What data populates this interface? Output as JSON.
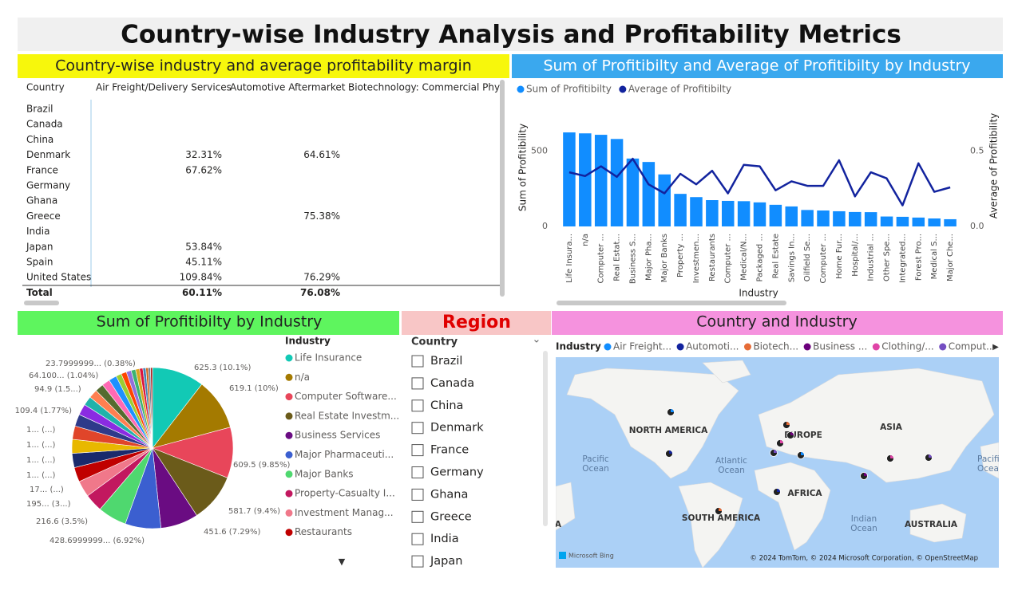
{
  "title": "Country-wise Industry Analysis and Profitability Metrics",
  "table": {
    "title": "Country-wise industry and average profitability margin",
    "columns": [
      "Country",
      "Air Freight/Delivery Services",
      "Automotive Aftermarket",
      "Biotechnology: Commercial Physi"
    ],
    "rows": [
      [
        "Brazil",
        null,
        null,
        null
      ],
      [
        "Canada",
        null,
        null,
        null
      ],
      [
        "China",
        null,
        null,
        null
      ],
      [
        "Denmark",
        "32.31%",
        "64.61%",
        null
      ],
      [
        "France",
        "67.62%",
        null,
        null
      ],
      [
        "Germany",
        null,
        null,
        null
      ],
      [
        "Ghana",
        null,
        null,
        null
      ],
      [
        "Greece",
        null,
        "75.38%",
        null
      ],
      [
        "India",
        null,
        null,
        null
      ],
      [
        "Japan",
        "53.84%",
        null,
        null
      ],
      [
        "Spain",
        "45.11%",
        null,
        null
      ],
      [
        "United States",
        "109.84%",
        "76.29%",
        null
      ],
      [
        "Total",
        "60.11%",
        "76.08%",
        null
      ]
    ]
  },
  "chart_data": [
    {
      "type": "combo",
      "title": "Sum of Profitibilty and Average of Profitibilty by Industry",
      "x_label": "Industry",
      "y_label": "Sum of Profitibility",
      "y2_label": "Average of Profitibility",
      "categories": [
        "Life Insura...",
        "n/a",
        "Computer ...",
        "Real Estat...",
        "Business S...",
        "Major Pha...",
        "Major Banks",
        "Property ...",
        "Investmen...",
        "Restaurants",
        "Computer ...",
        "Medical/N...",
        "Packaged ...",
        "Real Estate",
        "Savings In...",
        "Oilfield Se...",
        "Computer ...",
        "Home Fur...",
        "Hospital/...",
        "Industrial ...",
        "Other Spe...",
        "Integrated...",
        "Forest Pro...",
        "Medical S...",
        "Major Che..."
      ],
      "series": [
        {
          "name": "Sum of Profitibilty",
          "color": "#118dff",
          "type": "bar",
          "values": [
            625.3,
            619.1,
            609.5,
            581.7,
            451.6,
            428.7,
            346,
            216.6,
            195,
            175,
            170,
            168,
            160,
            144,
            133,
            109.4,
            106,
            101,
            96,
            94.9,
            66,
            64.1,
            59,
            53,
            48
          ]
        },
        {
          "name": "Average of Profitibilty",
          "color": "#12239e",
          "type": "line",
          "axis": "y2",
          "values": [
            0.36,
            0.335,
            0.4,
            0.33,
            0.45,
            0.28,
            0.22,
            0.35,
            0.28,
            0.37,
            0.22,
            0.41,
            0.4,
            0.24,
            0.3,
            0.27,
            0.27,
            0.44,
            0.2,
            0.36,
            0.32,
            0.14,
            0.42,
            0.23,
            0.26
          ]
        }
      ],
      "ylim": [
        0,
        700
      ],
      "yticks": [
        0,
        500
      ],
      "y2lim": [
        0,
        0.7
      ],
      "y2ticks": [
        {
          "value": 0,
          "label": "0.0"
        },
        {
          "value": 0.5,
          "label": "0.5"
        }
      ],
      "legend": "top-left",
      "grid": false
    },
    {
      "type": "pie",
      "title": "Sum of Profitibilty by Industry",
      "legend_title": "Industry",
      "categories": [
        "Life Insurance",
        "n/a",
        "Computer Software...",
        "Real Estate Investm...",
        "Business Services",
        "Major Pharmaceuti...",
        "Major Banks",
        "Property-Casualty I...",
        "Investment Manag...",
        "Restaurants",
        null,
        null,
        null,
        null,
        null,
        null,
        null,
        null,
        null,
        null,
        null,
        null,
        null,
        null,
        null,
        null,
        null,
        null,
        null,
        null
      ],
      "values": [
        625.3,
        619.1,
        609.5,
        581.7,
        451.6,
        428.6999999,
        346,
        216.6,
        195,
        175,
        170,
        168,
        160,
        144,
        133,
        109.4,
        106,
        101,
        96,
        94.9,
        66,
        64.1,
        59,
        53,
        48,
        40,
        35,
        30,
        26,
        23.7999999
      ],
      "value_labels": [
        "625.3 (10.1%)",
        "619.1 (10%)",
        "609.5 (9.85%)",
        "581.7 (9.4%)",
        "451.6 (7.29%)",
        "428.6999999... (6.92%)",
        null,
        "216.6 (3.5%)",
        "195... (3...)",
        "17... (...)",
        "1... (...)",
        "1... (...)",
        "1... (...)",
        "1... (...)",
        null,
        "109.4 (1.77%)",
        null,
        null,
        null,
        "94.9 (1.5...)",
        null,
        "64.100... (1.04%)",
        null,
        null,
        null,
        null,
        null,
        null,
        null,
        "23.7999999... (0.38%)"
      ],
      "colors": [
        "#12c9b5",
        "#a47a00",
        "#e8465a",
        "#6b5b1a",
        "#6a0c82",
        "#3b5fd0",
        "#4fd86f",
        "#c2185f",
        "#f0788a",
        "#c00000",
        "#1a2a6c",
        "#e8b800",
        "#e0452a",
        "#2e3a8a",
        "#8a2be2",
        "#20b2aa",
        "#ff7f50",
        "#556b2f",
        "#ff69b4",
        "#1e90ff",
        "#9acd32",
        "#ff4500",
        "#9370db",
        "#3cb371",
        "#daa520",
        "#dc143c",
        "#4682b4",
        "#d2691e",
        "#708090",
        "#b22222"
      ]
    }
  ],
  "slicer": {
    "title": "Region",
    "field": "Country",
    "items": [
      "Brazil",
      "Canada",
      "China",
      "Denmark",
      "France",
      "Germany",
      "Ghana",
      "Greece",
      "India",
      "Japan"
    ]
  },
  "map": {
    "title": "Country and Industry",
    "legend_title": "Industry",
    "legend": [
      {
        "name": "Air Freight...",
        "color": "#118dff"
      },
      {
        "name": "Automoti...",
        "color": "#12239e"
      },
      {
        "name": "Biotech...",
        "color": "#e66c37"
      },
      {
        "name": "Business ...",
        "color": "#6b007b"
      },
      {
        "name": "Clothing/...",
        "color": "#e044a7"
      },
      {
        "name": "Comput...",
        "color": "#744ec2"
      }
    ],
    "labels": [
      "NORTH AMERICA",
      "EUROPE",
      "ASIA",
      "AFRICA",
      "SOUTH AMERICA",
      "AUSTRALIA",
      "A"
    ],
    "oceans": [
      "Pacific\nOcean",
      "Atlantic\nOcean",
      "Indian\nOcean",
      "Pacific\nOcea"
    ],
    "provider": "Microsoft Bing",
    "attribution": "© 2024 TomTom, © 2024 Microsoft Corporation, © OpenStreetMap"
  }
}
